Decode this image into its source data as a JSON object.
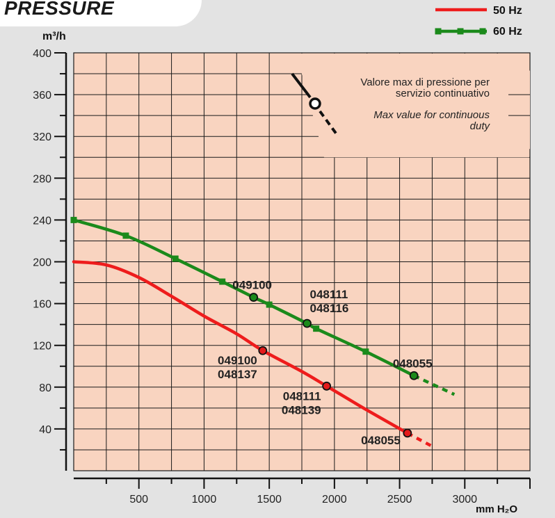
{
  "chart_data": {
    "type": "line",
    "title": "PRESSURE",
    "ylabel": "m³/h",
    "xlabel": "mm H₂O",
    "ylim": [
      0,
      400
    ],
    "xlim": [
      0,
      3500
    ],
    "yticks": [
      40,
      80,
      120,
      160,
      200,
      240,
      280,
      320,
      360,
      400
    ],
    "xticks": [
      500,
      1000,
      1500,
      2000,
      2500,
      3000
    ],
    "grid": true,
    "legend": {
      "placement": "top-right",
      "entries": [
        {
          "label": "50 Hz",
          "color": "#ee1c1c",
          "marker": "none"
        },
        {
          "label": "60 Hz",
          "color": "#1b8a1b",
          "marker": "square"
        }
      ]
    },
    "series": [
      {
        "legend": "50 Hz",
        "color": "#ee1c1c",
        "x": [
          0,
          250,
          500,
          750,
          1000,
          1250,
          1450,
          1750,
          1940,
          2250,
          2560
        ],
        "y": [
          200,
          197,
          185,
          167,
          148,
          131,
          115,
          95,
          81,
          58,
          36
        ],
        "dashed_x": [
          2560,
          2740
        ],
        "dashed_y": [
          36,
          24
        ]
      },
      {
        "legend": "60 Hz",
        "color": "#1b8a1b",
        "x": [
          0,
          400,
          780,
          1140,
          1380,
          1500,
          1790,
          1860,
          2240,
          2610
        ],
        "y": [
          240,
          225,
          203,
          181,
          166,
          159,
          141,
          136,
          114,
          91
        ],
        "markers_x": [
          0,
          400,
          780,
          1140,
          1500,
          1860,
          2240
        ],
        "markers_y": [
          240,
          225,
          203,
          181,
          159,
          136,
          114
        ],
        "dashed_x": [
          2610,
          2920
        ],
        "dashed_y": [
          91,
          73
        ]
      }
    ],
    "points": [
      {
        "series": "60 Hz",
        "x": 1380,
        "y": 166,
        "label": [
          "049100"
        ],
        "anchor": "above"
      },
      {
        "series": "60 Hz",
        "x": 1790,
        "y": 141,
        "label": [
          "048111",
          "048116"
        ],
        "anchor": "above-right"
      },
      {
        "series": "60 Hz",
        "x": 2610,
        "y": 91,
        "label": [
          "048055"
        ],
        "anchor": "above"
      },
      {
        "series": "50 Hz",
        "x": 1450,
        "y": 115,
        "label": [
          "049100",
          "048137"
        ],
        "anchor": "below-left"
      },
      {
        "series": "50 Hz",
        "x": 1940,
        "y": 81,
        "label": [
          "048111",
          "048139"
        ],
        "anchor": "below-left"
      },
      {
        "series": "50 Hz",
        "x": 2560,
        "y": 36,
        "label": [
          "048055"
        ],
        "anchor": "left"
      }
    ],
    "annotation": {
      "lines": [
        "Valore max di pressione per",
        "servizio continuativo"
      ],
      "lines_en": [
        "Max value for continuous",
        "duty"
      ]
    }
  }
}
